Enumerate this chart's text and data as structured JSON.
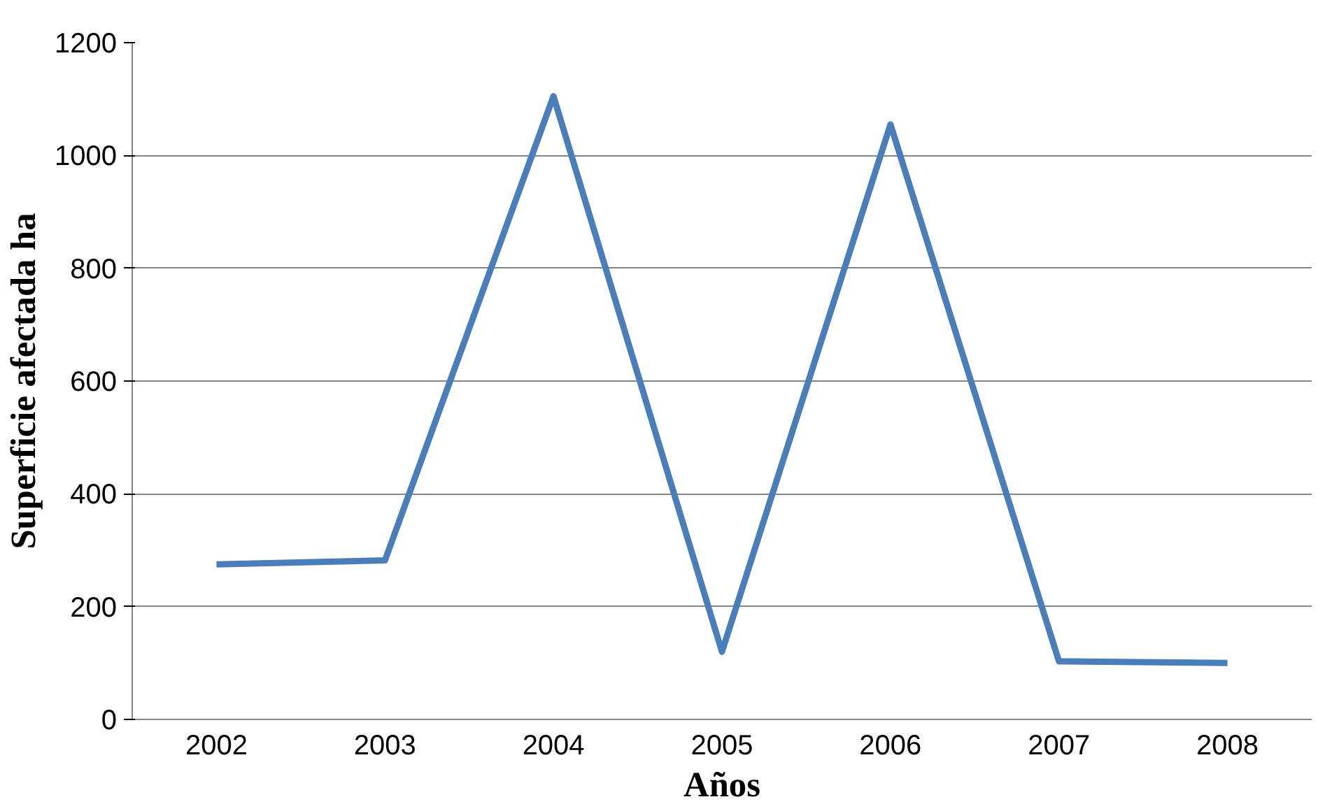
{
  "chart_data": {
    "type": "line",
    "xlabel": "Años",
    "ylabel": "Superficie afectada ha",
    "categories": [
      "2002",
      "2003",
      "2004",
      "2005",
      "2006",
      "2007",
      "2008"
    ],
    "series": [
      {
        "color": "#4a7ebb",
        "values": [
          275,
          282,
          1105,
          120,
          1055,
          103,
          100
        ]
      }
    ],
    "ylim": [
      0,
      1200
    ],
    "yticks": [
      0,
      200,
      400,
      600,
      800,
      1000,
      1200
    ],
    "grid": "y",
    "marker": "none",
    "line_style": "solid"
  }
}
